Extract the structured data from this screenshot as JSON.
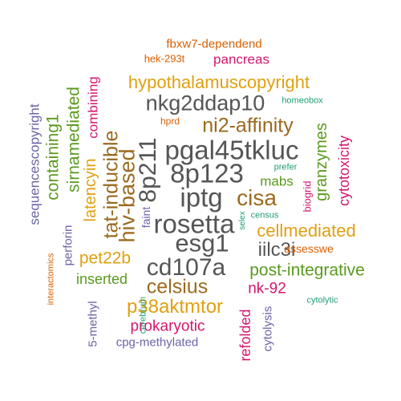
{
  "palette": {
    "gray": "#555555",
    "brown": "#9a6a1f",
    "gold": "#e0a010",
    "green": "#5a9a1e",
    "magenta": "#d4166e",
    "purple": "#6a64a8",
    "teal": "#1f9e77",
    "orange": "#d95f02"
  },
  "words": [
    {
      "text": "rosetta"
    },
    {
      "text": "iptg"
    },
    {
      "text": "8p123"
    },
    {
      "text": "pgal45tkluc"
    },
    {
      "text": "esg1"
    },
    {
      "text": "cd107a"
    },
    {
      "text": "8p211"
    },
    {
      "text": "nkg2ddap10"
    },
    {
      "text": "cisa"
    },
    {
      "text": "ni2-affinity"
    },
    {
      "text": "hiv-based"
    },
    {
      "text": "hypothalamuscopyright"
    },
    {
      "text": "celsius"
    },
    {
      "text": "tat-inducible"
    },
    {
      "text": "cellmediated"
    },
    {
      "text": "p38aktmtor"
    },
    {
      "text": "iilc3i"
    },
    {
      "text": "post-integrative"
    },
    {
      "text": "sirnamediated"
    },
    {
      "text": "containing1"
    },
    {
      "text": "pet22b"
    },
    {
      "text": "granzymes"
    },
    {
      "text": "latencyin"
    },
    {
      "text": "nk-92"
    },
    {
      "text": "prokaryotic"
    },
    {
      "text": "pancreas"
    },
    {
      "text": "inserted"
    },
    {
      "text": "mabs"
    },
    {
      "text": "refolded"
    },
    {
      "text": "cytotoxicity"
    },
    {
      "text": "sequencescopyright"
    },
    {
      "text": "combining"
    },
    {
      "text": "fbxw7-dependend"
    },
    {
      "text": "cpg-methylated"
    },
    {
      "text": "perforin"
    },
    {
      "text": "5-methyl"
    },
    {
      "text": "cytolysis"
    },
    {
      "text": "assesswe"
    },
    {
      "text": "faint"
    },
    {
      "text": "biogrid"
    },
    {
      "text": "hek-293t"
    },
    {
      "text": "homeobox"
    },
    {
      "text": "hprd"
    },
    {
      "text": "prefer"
    },
    {
      "text": "census"
    },
    {
      "text": "selex"
    },
    {
      "text": "interactomics"
    },
    {
      "text": "cerebrum"
    },
    {
      "text": "cytolytic"
    }
  ]
}
